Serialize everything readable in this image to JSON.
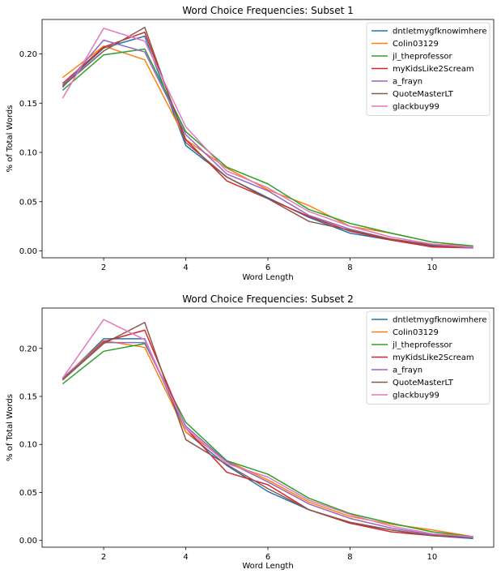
{
  "chart_data": [
    {
      "type": "line",
      "title": "Word Choice Frequencies: Subset 1",
      "xlabel": "Word Length",
      "ylabel": "% of Total Words",
      "xlim": [
        0.5,
        11.5
      ],
      "ylim": [
        -0.007,
        0.235
      ],
      "xticks": [
        2,
        4,
        6,
        8,
        10
      ],
      "xtick_labels": [
        "2",
        "4",
        "6",
        "8",
        "10"
      ],
      "yticks": [
        0.0,
        0.05,
        0.1,
        0.15,
        0.2
      ],
      "ytick_labels": [
        "0.00",
        "0.05",
        "0.10",
        "0.15",
        "0.20"
      ],
      "legend_position": "top-right",
      "x": [
        1,
        2,
        3,
        4,
        5,
        6,
        7,
        8,
        9,
        10,
        11
      ],
      "series": [
        {
          "name": "dntletmygfknowimhere",
          "color": "#1f77b4",
          "values": [
            0.168,
            0.206,
            0.218,
            0.107,
            0.075,
            0.054,
            0.034,
            0.018,
            0.011,
            0.005,
            0.003
          ]
        },
        {
          "name": "Colin03129",
          "color": "#ff7f0e",
          "values": [
            0.176,
            0.208,
            0.194,
            0.113,
            0.084,
            0.062,
            0.046,
            0.025,
            0.018,
            0.009,
            0.004
          ]
        },
        {
          "name": "jl_theprofessor",
          "color": "#2ca02c",
          "values": [
            0.163,
            0.199,
            0.205,
            0.121,
            0.085,
            0.068,
            0.042,
            0.028,
            0.018,
            0.009,
            0.005
          ]
        },
        {
          "name": "myKidsLike2Scream",
          "color": "#d62728",
          "values": [
            0.17,
            0.207,
            0.222,
            0.113,
            0.071,
            0.053,
            0.035,
            0.02,
            0.011,
            0.004,
            0.003
          ]
        },
        {
          "name": "a_frayn",
          "color": "#9467bd",
          "values": [
            0.166,
            0.214,
            0.202,
            0.118,
            0.078,
            0.061,
            0.036,
            0.022,
            0.012,
            0.006,
            0.003
          ]
        },
        {
          "name": "QuoteMasterLT",
          "color": "#8c564b",
          "values": [
            0.167,
            0.203,
            0.227,
            0.11,
            0.075,
            0.053,
            0.03,
            0.021,
            0.012,
            0.006,
            0.004
          ]
        },
        {
          "name": "glackbuy99",
          "color": "#e377c2",
          "values": [
            0.155,
            0.226,
            0.213,
            0.126,
            0.081,
            0.064,
            0.04,
            0.025,
            0.014,
            0.007,
            0.004
          ]
        }
      ]
    },
    {
      "type": "line",
      "title": "Word Choice Frequencies: Subset 2",
      "xlabel": "Word Length",
      "ylabel": "% of Total Words",
      "xlim": [
        0.5,
        11.5
      ],
      "ylim": [
        -0.007,
        0.242
      ],
      "xticks": [
        2,
        4,
        6,
        8,
        10
      ],
      "xtick_labels": [
        "2",
        "4",
        "6",
        "8",
        "10"
      ],
      "yticks": [
        0.0,
        0.05,
        0.1,
        0.15,
        0.2
      ],
      "ytick_labels": [
        "0.00",
        "0.05",
        "0.10",
        "0.15",
        "0.20"
      ],
      "legend_position": "top-right",
      "x": [
        1,
        2,
        3,
        4,
        5,
        6,
        7,
        8,
        9,
        10,
        11
      ],
      "series": [
        {
          "name": "dntletmygfknowimhere",
          "color": "#1f77b4",
          "values": [
            0.168,
            0.21,
            0.21,
            0.113,
            0.078,
            0.051,
            0.032,
            0.018,
            0.011,
            0.005,
            0.002
          ]
        },
        {
          "name": "Colin03129",
          "color": "#ff7f0e",
          "values": [
            0.169,
            0.208,
            0.201,
            0.113,
            0.083,
            0.063,
            0.04,
            0.025,
            0.017,
            0.011,
            0.004
          ]
        },
        {
          "name": "jl_theprofessor",
          "color": "#2ca02c",
          "values": [
            0.163,
            0.197,
            0.205,
            0.123,
            0.083,
            0.069,
            0.044,
            0.028,
            0.018,
            0.009,
            0.004
          ]
        },
        {
          "name": "myKidsLike2Scream",
          "color": "#d62728",
          "values": [
            0.168,
            0.207,
            0.219,
            0.117,
            0.071,
            0.058,
            0.032,
            0.018,
            0.009,
            0.005,
            0.003
          ]
        },
        {
          "name": "a_frayn",
          "color": "#9467bd",
          "values": [
            0.169,
            0.206,
            0.206,
            0.119,
            0.082,
            0.061,
            0.038,
            0.023,
            0.013,
            0.006,
            0.003
          ]
        },
        {
          "name": "QuoteMasterLT",
          "color": "#8c564b",
          "values": [
            0.167,
            0.205,
            0.227,
            0.105,
            0.079,
            0.054,
            0.032,
            0.019,
            0.011,
            0.005,
            0.004
          ]
        },
        {
          "name": "glackbuy99",
          "color": "#e377c2",
          "values": [
            0.169,
            0.23,
            0.209,
            0.117,
            0.08,
            0.066,
            0.042,
            0.027,
            0.015,
            0.007,
            0.004
          ]
        }
      ]
    }
  ]
}
